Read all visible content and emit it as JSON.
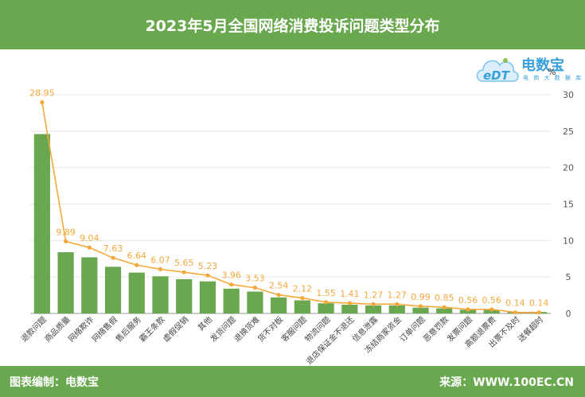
{
  "header": {
    "title": "2023年5月全国网络消费投诉问题类型分布"
  },
  "logo": {
    "name": "电数宝",
    "sub": "电 商 大 数 据 库",
    "mark": "eDT"
  },
  "footer": {
    "credit": "图表编制：电数宝",
    "source": "来源：WWW.100EC.CN"
  },
  "colors": {
    "bar": "#6aa84f",
    "line": "#f5a83a",
    "label": "#f5a83a",
    "header": "#6aa84f",
    "grid": "#e8e8e8"
  },
  "chart_data": {
    "type": "bar",
    "title": "2023年5月全国网络消费投诉问题类型分布",
    "ylabel": "%",
    "ylim": [
      0,
      30
    ],
    "yticks": [
      0,
      5,
      10,
      15,
      20,
      25,
      30
    ],
    "y_axis_position": "right",
    "grid": true,
    "categories": [
      "退款问题",
      "商品质量",
      "网络欺诈",
      "网络售假",
      "售后服务",
      "霸王条款",
      "虚假促销",
      "其他",
      "发货问题",
      "退换货难",
      "货不对板",
      "客服问题",
      "物流问题",
      "退店保证金不退还",
      "信息泄露",
      "冻结商家资金",
      "订单问题",
      "恶意罚款",
      "发票问题",
      "高额退票费",
      "出票不及时",
      "送餐超时"
    ],
    "series": [
      {
        "type": "bar",
        "values": [
          24.6,
          8.4,
          7.7,
          6.4,
          5.6,
          5.1,
          4.7,
          4.4,
          3.4,
          3.0,
          2.2,
          1.8,
          1.4,
          1.2,
          1.1,
          1.1,
          0.8,
          0.7,
          0.5,
          0.5,
          0.2,
          0.2
        ]
      },
      {
        "type": "line",
        "values": [
          28.95,
          9.89,
          9.04,
          7.63,
          6.64,
          6.07,
          5.65,
          5.23,
          3.96,
          3.53,
          2.54,
          2.12,
          1.55,
          1.41,
          1.27,
          1.27,
          0.99,
          0.85,
          0.56,
          0.56,
          0.14,
          0.14
        ]
      }
    ],
    "data_labels": [
      "28.95",
      "9.89",
      "9.04",
      "7.63",
      "6.64",
      "6.07",
      "5.65",
      "5.23",
      "3.96",
      "3.53",
      "2.54",
      "2.12",
      "1.55",
      "1.41",
      "1.27",
      "1.27",
      "0.99",
      "0.85",
      "0.56",
      "0.56",
      "0.14",
      "0.14"
    ]
  }
}
